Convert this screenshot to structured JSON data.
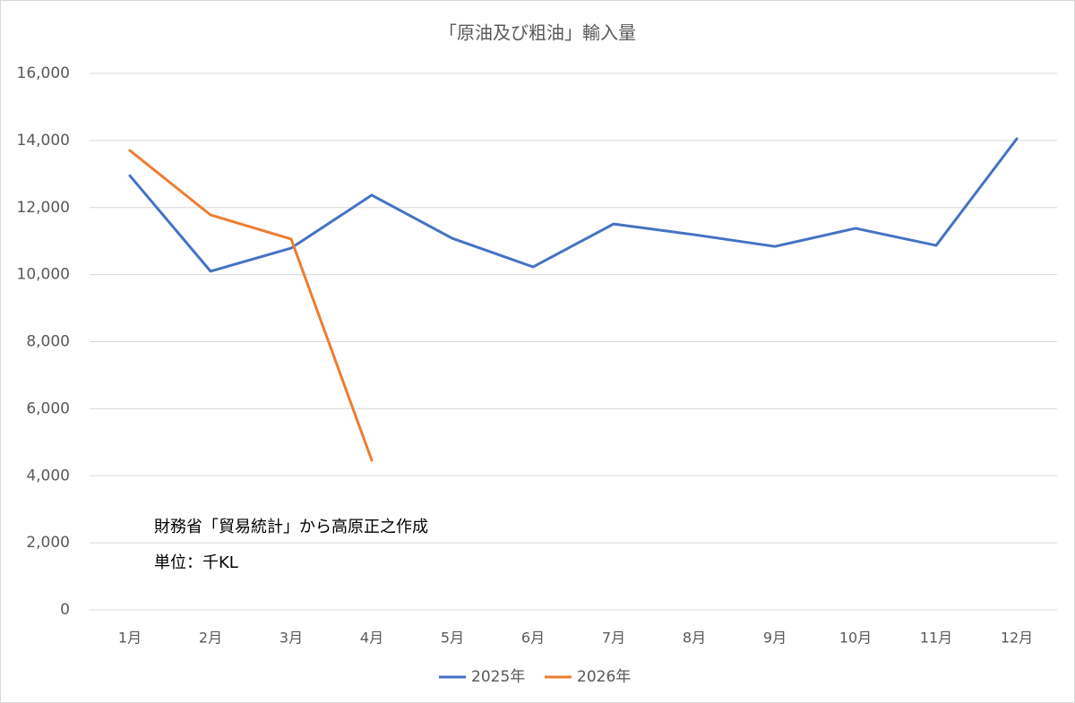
{
  "chart_data": {
    "type": "line",
    "title": "「原油及び粗油」輸入量",
    "categories": [
      "1月",
      "2月",
      "3月",
      "4月",
      "5月",
      "6月",
      "7月",
      "8月",
      "9月",
      "10月",
      "11月",
      "12月"
    ],
    "series": [
      {
        "name": "2025年",
        "color": "#4472c4",
        "values": [
          12950,
          10100,
          10790,
          12370,
          11080,
          10230,
          11510,
          11190,
          10840,
          11380,
          10870,
          14050
        ]
      },
      {
        "name": "2026年",
        "color": "#ed7d31",
        "values": [
          13700,
          11780,
          11060,
          4460,
          null,
          null,
          null,
          null,
          null,
          null,
          null,
          null
        ]
      }
    ],
    "ylim": [
      0,
      16000
    ],
    "yticks": [
      0,
      {
        "value": 2000,
        "label": "2,000"
      },
      {
        "value": 4000,
        "label": "4,000"
      },
      {
        "value": 6000,
        "label": "6,000"
      },
      {
        "value": 8000,
        "label": "8,000"
      },
      {
        "value": 10000,
        "label": "10,000"
      },
      {
        "value": 12000,
        "label": "12,000"
      },
      {
        "value": 14000,
        "label": "14,000"
      },
      {
        "value": 16000,
        "label": "16,000"
      }
    ],
    "grid": true,
    "legend": "bottom",
    "annotations": [
      "財務省「貿易統計」から高原正之作成",
      "単位：千KL"
    ]
  }
}
